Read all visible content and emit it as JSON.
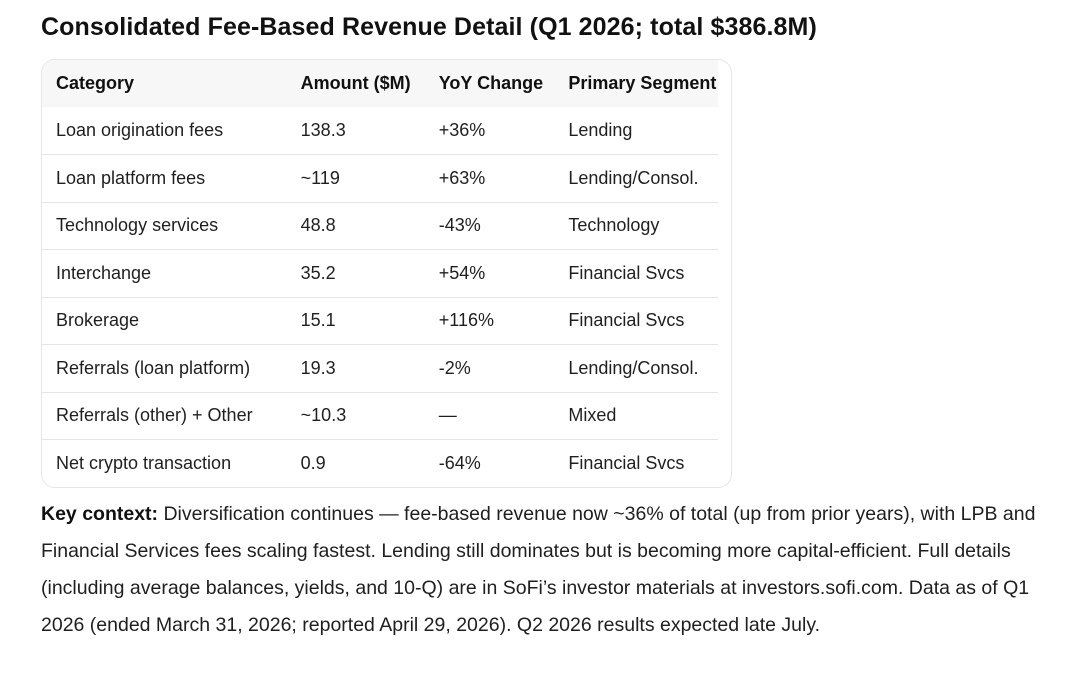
{
  "document": {
    "title": "Consolidated Fee-Based Revenue Detail (Q1 2026; total $386.8M)"
  },
  "table": {
    "headers": [
      "Category",
      "Amount ($M)",
      "YoY Change",
      "Primary Segment"
    ],
    "rows": [
      [
        "Loan origination fees",
        "138.3",
        "+36%",
        "Lending"
      ],
      [
        "Loan platform fees",
        "~119",
        "+63%",
        "Lending/Consol."
      ],
      [
        "Technology services",
        "48.8",
        "-43%",
        "Technology"
      ],
      [
        "Interchange",
        "35.2",
        "+54%",
        "Financial Svcs"
      ],
      [
        "Brokerage",
        "15.1",
        "+116%",
        "Financial Svcs"
      ],
      [
        "Referrals (loan platform)",
        "19.3",
        "-2%",
        "Lending/Consol."
      ],
      [
        "Referrals (other) + Other",
        "~10.3",
        "—",
        "Mixed"
      ],
      [
        "Net crypto transaction",
        "0.9",
        "-64%",
        "Financial Svcs"
      ]
    ]
  },
  "context": {
    "label": "Key context:",
    "text": "Diversification continues — fee-based revenue now ~36% of total (up from prior years), with LPB and Financial Services fees scaling fastest. Lending still dominates but is becoming more capital-efficient. Full details (including average balances, yields, and 10-Q) are in SoFi’s investor materials at investors.sofi.com. Data as of Q1 2026 (ended March 31, 2026; reported April 29, 2026). Q2 2026 results expected late July."
  }
}
